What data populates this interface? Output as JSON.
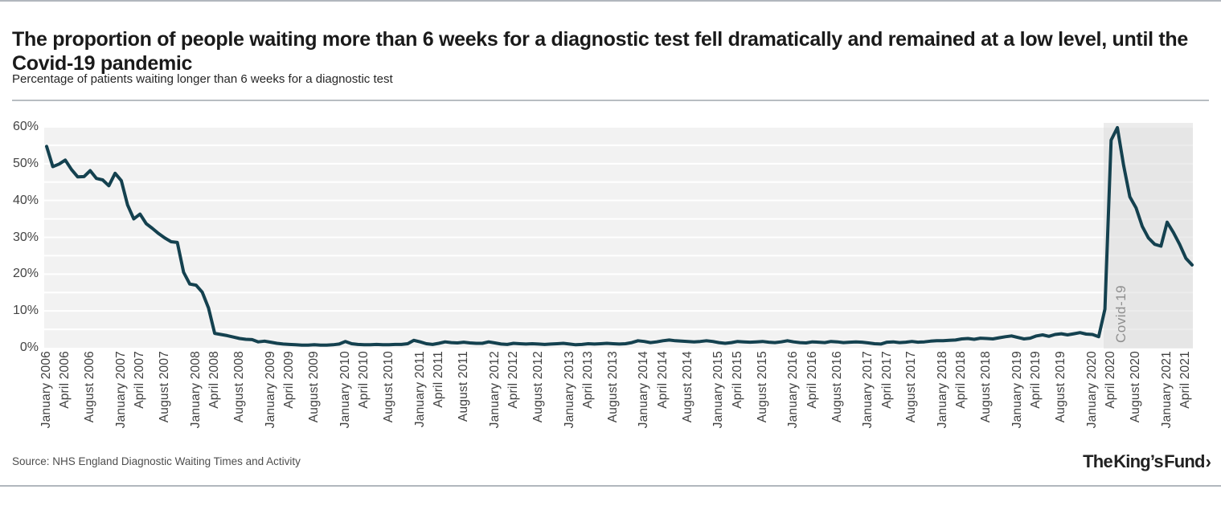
{
  "page": {
    "title": "The proportion of people waiting more than 6 weeks for a diagnostic test fell dramatically and remained at a low level, until the Covid-19 pandemic",
    "subtitle": "Percentage of patients waiting longer than 6 weeks for a diagnostic test",
    "source": "Source: NHS England Diagnostic Waiting Times and Activity",
    "logo_text": "The King’s Fund",
    "logo_chevron": "›"
  },
  "colors": {
    "line": "#14414f",
    "plot_bg": "#f2f2f2",
    "grid": "#ffffff",
    "covid_band": "#dcdcdc",
    "covid_label": "#8f8f8f",
    "axis_text": "#404040",
    "border_strip": "#b1b7bd"
  },
  "chart_data": {
    "type": "line",
    "title": "The proportion of people waiting more than 6 weeks for a diagnostic test fell dramatically and remained at a low level, until the Covid-19 pandemic",
    "subtitle": "Percentage of patients waiting longer than 6 weeks for a diagnostic test",
    "frequency": "monthly",
    "x_start_month": "2006-01",
    "x_end_month": "2021-05",
    "y_max": 60,
    "grid_step": 5,
    "legend": "none",
    "y_ticks": [
      {
        "value": 0,
        "label": "0%"
      },
      {
        "value": 10,
        "label": "10%"
      },
      {
        "value": 20,
        "label": "20%"
      },
      {
        "value": 30,
        "label": "30%"
      },
      {
        "value": 40,
        "label": "40%"
      },
      {
        "value": 50,
        "label": "50%"
      },
      {
        "value": 60,
        "label": "60%"
      }
    ],
    "x_labels": [
      {
        "m": 0,
        "label": "January 2006"
      },
      {
        "m": 3,
        "label": "April 2006"
      },
      {
        "m": 7,
        "label": "August 2006"
      },
      {
        "m": 12,
        "label": "January 2007"
      },
      {
        "m": 15,
        "label": "April 2007"
      },
      {
        "m": 19,
        "label": "August 2007"
      },
      {
        "m": 24,
        "label": "January 2008"
      },
      {
        "m": 27,
        "label": "April 2008"
      },
      {
        "m": 31,
        "label": "August 2008"
      },
      {
        "m": 36,
        "label": "January 2009"
      },
      {
        "m": 39,
        "label": "April 2009"
      },
      {
        "m": 43,
        "label": "August 2009"
      },
      {
        "m": 48,
        "label": "January 2010"
      },
      {
        "m": 51,
        "label": "April 2010"
      },
      {
        "m": 55,
        "label": "August 2010"
      },
      {
        "m": 60,
        "label": "January 2011"
      },
      {
        "m": 63,
        "label": "April 2011"
      },
      {
        "m": 67,
        "label": "August 2011"
      },
      {
        "m": 72,
        "label": "January 2012"
      },
      {
        "m": 75,
        "label": "April 2012"
      },
      {
        "m": 79,
        "label": "August 2012"
      },
      {
        "m": 84,
        "label": "January 2013"
      },
      {
        "m": 87,
        "label": "April 2013"
      },
      {
        "m": 91,
        "label": "August 2013"
      },
      {
        "m": 96,
        "label": "January 2014"
      },
      {
        "m": 99,
        "label": "April 2014"
      },
      {
        "m": 103,
        "label": "August 2014"
      },
      {
        "m": 108,
        "label": "January 2015"
      },
      {
        "m": 111,
        "label": "April 2015"
      },
      {
        "m": 115,
        "label": "August 2015"
      },
      {
        "m": 120,
        "label": "January 2016"
      },
      {
        "m": 123,
        "label": "April 2016"
      },
      {
        "m": 127,
        "label": "August 2016"
      },
      {
        "m": 132,
        "label": "January 2017"
      },
      {
        "m": 135,
        "label": "April 2017"
      },
      {
        "m": 139,
        "label": "August 2017"
      },
      {
        "m": 144,
        "label": "January 2018"
      },
      {
        "m": 147,
        "label": "April 2018"
      },
      {
        "m": 151,
        "label": "August 2018"
      },
      {
        "m": 156,
        "label": "January 2019"
      },
      {
        "m": 159,
        "label": "April 2019"
      },
      {
        "m": 163,
        "label": "August 2019"
      },
      {
        "m": 168,
        "label": "January 2020"
      },
      {
        "m": 171,
        "label": "April 2020"
      },
      {
        "m": 175,
        "label": "August 2020"
      },
      {
        "m": 180,
        "label": "January 2021"
      },
      {
        "m": 183,
        "label": "April 2021"
      }
    ],
    "annotation": {
      "label": "Covid-19",
      "start_month_index": 169.8,
      "end_month_index": 184
    },
    "series": [
      {
        "name": "Percentage of patients waiting longer than 6 weeks for a diagnostic test",
        "monthly_values": [
          54.7,
          49.2,
          49.9,
          51.0,
          48.4,
          46.4,
          46.5,
          48.1,
          46.0,
          45.6,
          44.0,
          47.4,
          45.4,
          38.8,
          35.0,
          36.3,
          33.7,
          32.4,
          31.0,
          29.8,
          28.8,
          28.6,
          20.5,
          17.3,
          17.0,
          15.1,
          10.8,
          3.9,
          3.6,
          3.3,
          2.9,
          2.5,
          2.3,
          2.2,
          1.6,
          1.8,
          1.5,
          1.2,
          1.0,
          0.9,
          0.8,
          0.7,
          0.7,
          0.8,
          0.7,
          0.7,
          0.8,
          1.0,
          1.7,
          1.1,
          0.9,
          0.8,
          0.8,
          0.9,
          0.8,
          0.8,
          0.9,
          0.9,
          1.1,
          2.0,
          1.6,
          1.1,
          0.9,
          1.2,
          1.6,
          1.4,
          1.3,
          1.5,
          1.3,
          1.2,
          1.2,
          1.6,
          1.3,
          1.0,
          0.9,
          1.2,
          1.1,
          1.0,
          1.1,
          1.0,
          0.9,
          1.0,
          1.1,
          1.2,
          1.0,
          0.8,
          0.9,
          1.1,
          1.0,
          1.1,
          1.2,
          1.1,
          1.0,
          1.1,
          1.4,
          1.9,
          1.7,
          1.4,
          1.6,
          1.9,
          2.1,
          1.9,
          1.8,
          1.7,
          1.6,
          1.7,
          1.9,
          1.7,
          1.4,
          1.2,
          1.4,
          1.7,
          1.6,
          1.5,
          1.6,
          1.7,
          1.5,
          1.4,
          1.6,
          1.9,
          1.6,
          1.4,
          1.3,
          1.6,
          1.5,
          1.4,
          1.7,
          1.6,
          1.4,
          1.5,
          1.6,
          1.5,
          1.3,
          1.1,
          1.0,
          1.5,
          1.6,
          1.4,
          1.5,
          1.7,
          1.5,
          1.6,
          1.8,
          1.9,
          1.9,
          2.0,
          2.1,
          2.4,
          2.5,
          2.3,
          2.6,
          2.5,
          2.4,
          2.7,
          3.0,
          3.2,
          2.8,
          2.4,
          2.6,
          3.2,
          3.5,
          3.1,
          3.6,
          3.8,
          3.5,
          3.8,
          4.1,
          3.7,
          3.6,
          3.0,
          10.5,
          56.4,
          59.8,
          49.6,
          41.0,
          38.0,
          33.0,
          29.8,
          28.1,
          27.6,
          34.1,
          31.3,
          28.1,
          24.3,
          22.5
        ]
      }
    ]
  }
}
